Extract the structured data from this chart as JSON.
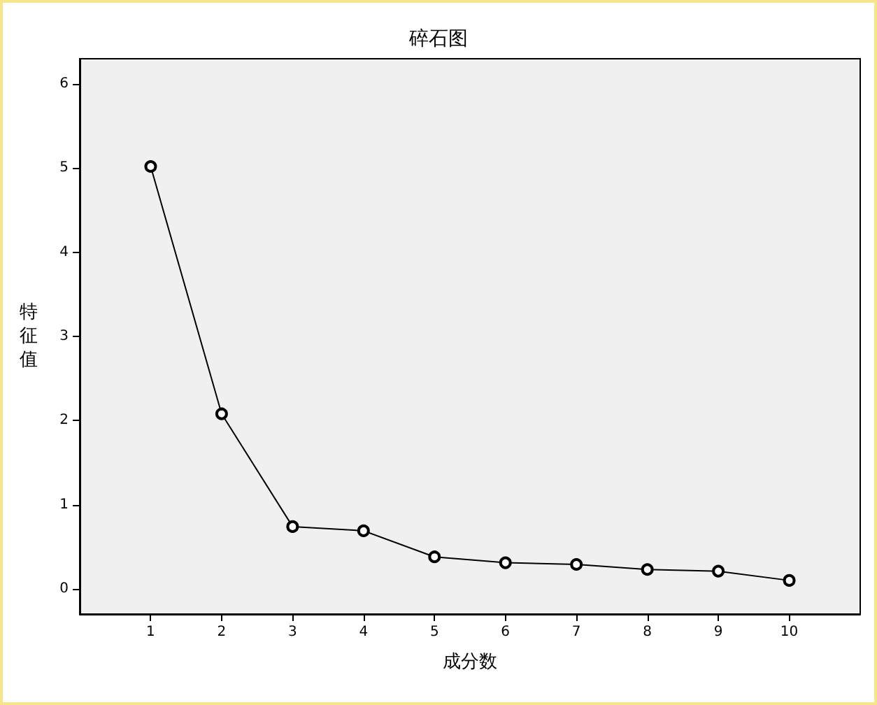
{
  "chart_data": {
    "type": "line",
    "title": "碎石图",
    "xlabel": "成分数",
    "ylabel": "特征值",
    "x": [
      1,
      2,
      3,
      4,
      5,
      6,
      7,
      8,
      9,
      10
    ],
    "series": [
      {
        "color": "#000000",
        "values": [
          5.02,
          2.08,
          0.74,
          0.69,
          0.38,
          0.31,
          0.29,
          0.23,
          0.21,
          0.1
        ]
      }
    ],
    "xlim": [
      0,
      11
    ],
    "xticks": [
      1,
      2,
      3,
      4,
      5,
      6,
      7,
      8,
      9,
      10
    ],
    "ylim": [
      -0.3,
      6.3
    ],
    "yticks": [
      0,
      1,
      2,
      3,
      4,
      5,
      6
    ],
    "grid": false,
    "marker": "circle",
    "line_style": "solid"
  }
}
